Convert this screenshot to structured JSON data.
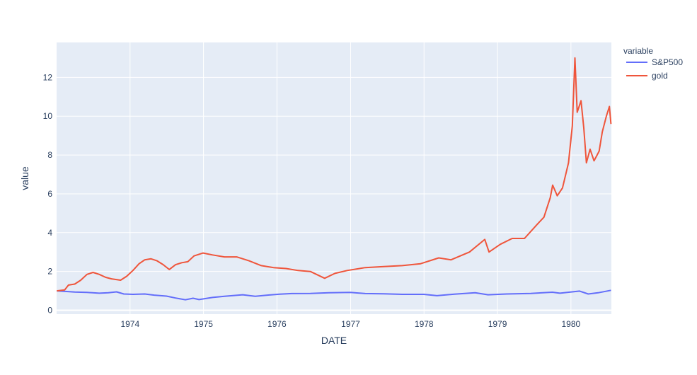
{
  "chart_data": {
    "type": "line",
    "xlabel": "DATE",
    "ylabel": "value",
    "xlim": [
      "1973-01-01",
      "1980-07-20"
    ],
    "ylim": [
      -0.2,
      13.8
    ],
    "grid": true,
    "legend_title": "variable",
    "legend_position": "right",
    "x_ticks": [
      "1974",
      "1975",
      "1976",
      "1977",
      "1978",
      "1979",
      "1980"
    ],
    "y_ticks": [
      0,
      2,
      4,
      6,
      8,
      10,
      12
    ],
    "series": [
      {
        "name": "S&P500",
        "color": "#636efa",
        "points": [
          [
            "1973-01-02",
            1.0
          ],
          [
            "1973-02-15",
            0.97
          ],
          [
            "1973-04-01",
            0.94
          ],
          [
            "1973-06-01",
            0.92
          ],
          [
            "1973-08-01",
            0.88
          ],
          [
            "1973-09-15",
            0.9
          ],
          [
            "1973-10-26",
            0.95
          ],
          [
            "1973-12-01",
            0.84
          ],
          [
            "1974-01-15",
            0.82
          ],
          [
            "1974-03-15",
            0.84
          ],
          [
            "1974-05-01",
            0.78
          ],
          [
            "1974-07-01",
            0.73
          ],
          [
            "1974-08-15",
            0.63
          ],
          [
            "1974-10-03",
            0.54
          ],
          [
            "1974-11-10",
            0.62
          ],
          [
            "1974-12-10",
            0.55
          ],
          [
            "1975-02-15",
            0.66
          ],
          [
            "1975-04-15",
            0.72
          ],
          [
            "1975-07-15",
            0.8
          ],
          [
            "1975-09-15",
            0.72
          ],
          [
            "1975-11-15",
            0.78
          ],
          [
            "1976-01-15",
            0.83
          ],
          [
            "1976-03-15",
            0.86
          ],
          [
            "1976-06-15",
            0.87
          ],
          [
            "1976-09-15",
            0.9
          ],
          [
            "1976-12-31",
            0.92
          ],
          [
            "1977-03-15",
            0.86
          ],
          [
            "1977-06-15",
            0.85
          ],
          [
            "1977-09-15",
            0.82
          ],
          [
            "1977-12-31",
            0.82
          ],
          [
            "1978-03-06",
            0.75
          ],
          [
            "1978-06-01",
            0.83
          ],
          [
            "1978-09-12",
            0.9
          ],
          [
            "1978-11-15",
            0.8
          ],
          [
            "1979-02-15",
            0.84
          ],
          [
            "1979-06-15",
            0.87
          ],
          [
            "1979-10-01",
            0.93
          ],
          [
            "1979-11-07",
            0.88
          ],
          [
            "1980-02-13",
            0.99
          ],
          [
            "1980-03-27",
            0.84
          ],
          [
            "1980-05-15",
            0.9
          ],
          [
            "1980-07-18",
            1.03
          ]
        ]
      },
      {
        "name": "gold",
        "color": "#ef553b",
        "points": [
          [
            "1973-01-02",
            1.0
          ],
          [
            "1973-02-10",
            1.05
          ],
          [
            "1973-03-01",
            1.3
          ],
          [
            "1973-04-01",
            1.35
          ],
          [
            "1973-05-01",
            1.55
          ],
          [
            "1973-06-01",
            1.85
          ],
          [
            "1973-07-01",
            1.95
          ],
          [
            "1973-08-01",
            1.85
          ],
          [
            "1973-09-01",
            1.7
          ],
          [
            "1973-10-01",
            1.62
          ],
          [
            "1973-11-15",
            1.55
          ],
          [
            "1973-12-15",
            1.75
          ],
          [
            "1974-01-15",
            2.05
          ],
          [
            "1974-02-15",
            2.4
          ],
          [
            "1974-03-15",
            2.6
          ],
          [
            "1974-04-15",
            2.65
          ],
          [
            "1974-05-15",
            2.55
          ],
          [
            "1974-06-15",
            2.35
          ],
          [
            "1974-07-15",
            2.1
          ],
          [
            "1974-08-15",
            2.35
          ],
          [
            "1974-09-15",
            2.45
          ],
          [
            "1974-10-15",
            2.5
          ],
          [
            "1974-11-15",
            2.8
          ],
          [
            "1974-12-30",
            2.95
          ],
          [
            "1975-02-15",
            2.85
          ],
          [
            "1975-04-15",
            2.75
          ],
          [
            "1975-06-15",
            2.75
          ],
          [
            "1975-08-15",
            2.55
          ],
          [
            "1975-10-15",
            2.3
          ],
          [
            "1975-12-15",
            2.2
          ],
          [
            "1976-02-15",
            2.15
          ],
          [
            "1976-04-15",
            2.05
          ],
          [
            "1976-06-15",
            2.0
          ],
          [
            "1976-08-25",
            1.65
          ],
          [
            "1976-10-15",
            1.9
          ],
          [
            "1976-12-15",
            2.05
          ],
          [
            "1977-03-15",
            2.2
          ],
          [
            "1977-06-15",
            2.25
          ],
          [
            "1977-09-15",
            2.3
          ],
          [
            "1977-12-15",
            2.4
          ],
          [
            "1978-03-15",
            2.7
          ],
          [
            "1978-05-15",
            2.6
          ],
          [
            "1978-08-15",
            3.0
          ],
          [
            "1978-10-30",
            3.65
          ],
          [
            "1978-11-20",
            3.0
          ],
          [
            "1979-01-15",
            3.4
          ],
          [
            "1979-03-15",
            3.7
          ],
          [
            "1979-05-15",
            3.7
          ],
          [
            "1979-07-15",
            4.4
          ],
          [
            "1979-08-20",
            4.8
          ],
          [
            "1979-09-20",
            5.8
          ],
          [
            "1979-10-02",
            6.45
          ],
          [
            "1979-10-25",
            5.9
          ],
          [
            "1979-11-20",
            6.3
          ],
          [
            "1979-12-20",
            7.6
          ],
          [
            "1980-01-08",
            9.5
          ],
          [
            "1980-01-21",
            13.0
          ],
          [
            "1980-02-01",
            10.2
          ],
          [
            "1980-02-20",
            10.8
          ],
          [
            "1980-03-05",
            9.4
          ],
          [
            "1980-03-18",
            7.6
          ],
          [
            "1980-04-05",
            8.3
          ],
          [
            "1980-04-25",
            7.7
          ],
          [
            "1980-05-20",
            8.2
          ],
          [
            "1980-06-05",
            9.2
          ],
          [
            "1980-06-25",
            10.0
          ],
          [
            "1980-07-10",
            10.5
          ],
          [
            "1980-07-18",
            9.6
          ]
        ]
      }
    ]
  }
}
